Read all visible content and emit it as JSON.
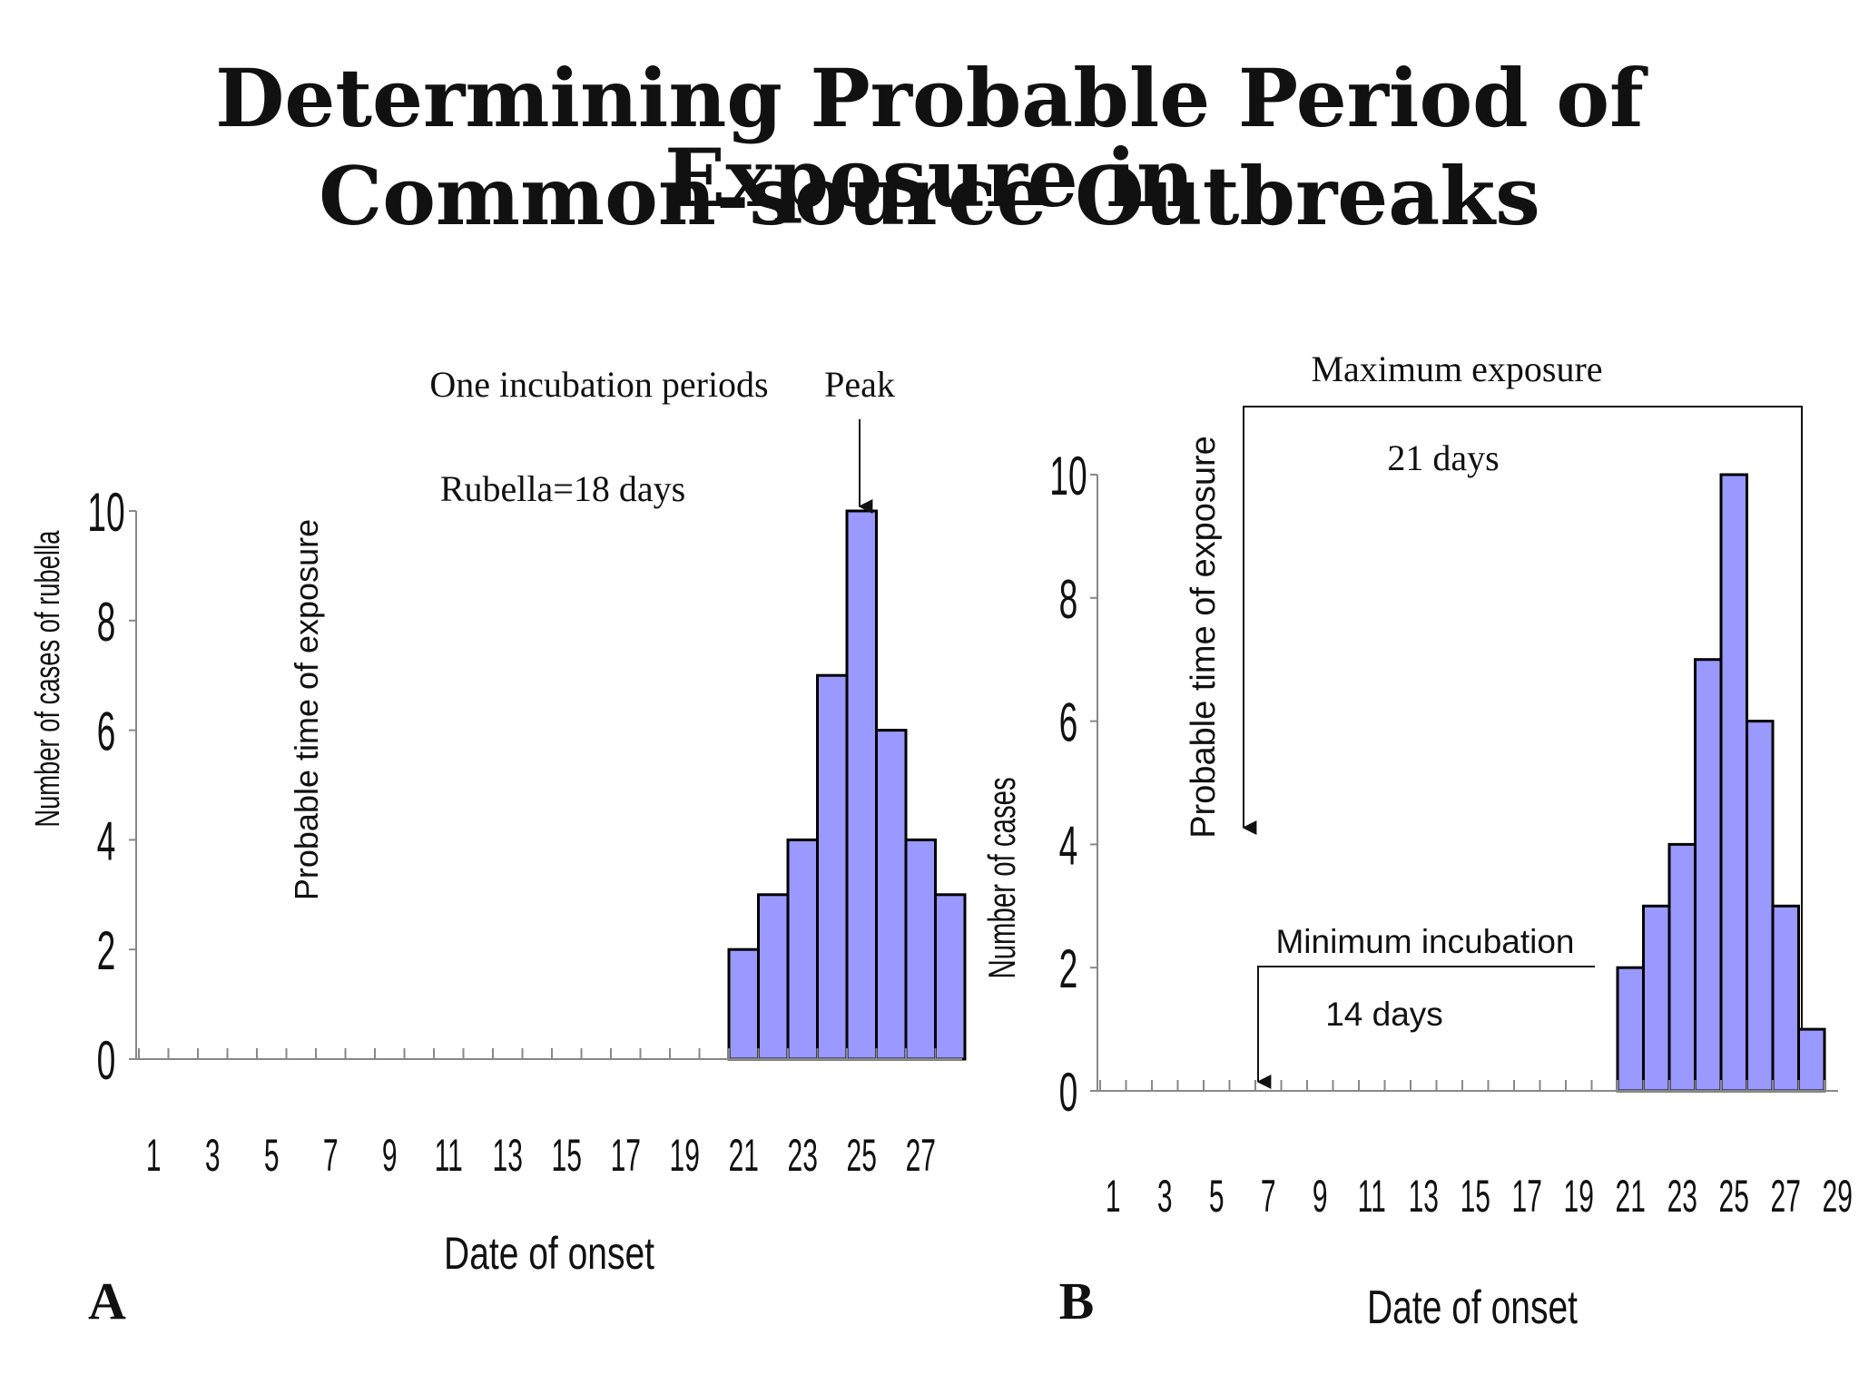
{
  "title": {
    "line1": "Determining Probable Period of Exposure in",
    "line2": "Common-source Outbreaks"
  },
  "colors": {
    "bar_fill": "#9999FF",
    "bar_stroke": "#000000"
  },
  "chart_data": [
    {
      "panel_label": "A",
      "type": "bar",
      "xlabel": "Date of onset",
      "ylabel": "Number of cases of rubella",
      "ylim": [
        0,
        10
      ],
      "yticks": [
        0,
        2,
        4,
        6,
        8,
        10
      ],
      "xticks": [
        1,
        3,
        5,
        7,
        9,
        11,
        13,
        15,
        17,
        19,
        21,
        23,
        25,
        27
      ],
      "xlim": [
        1,
        28
      ],
      "x": [
        21,
        22,
        23,
        24,
        25,
        26,
        27,
        28
      ],
      "values": [
        2,
        3,
        4,
        7,
        10,
        6,
        4,
        3
      ],
      "annotations": {
        "incubation": "One incubation periods",
        "peak": "Peak",
        "rubella": "Rubella=18 days",
        "exposure": "Probable time of exposure"
      }
    },
    {
      "panel_label": "B",
      "type": "bar",
      "xlabel": "Date of onset",
      "ylabel": "Number of cases",
      "ylim": [
        0,
        10
      ],
      "yticks": [
        0,
        2,
        4,
        6,
        8,
        10
      ],
      "xticks": [
        1,
        3,
        5,
        7,
        9,
        11,
        13,
        15,
        17,
        19,
        21,
        23,
        25,
        27,
        29
      ],
      "xlim": [
        1,
        29
      ],
      "x": [
        21,
        22,
        23,
        24,
        25,
        26,
        27,
        28
      ],
      "values": [
        2,
        3,
        4,
        7,
        10,
        6,
        3,
        1
      ],
      "annotations": {
        "max_exposure": "Maximum exposure",
        "days21": "21 days",
        "min_incubation": "Minimum incubation",
        "days14": "14 days",
        "exposure": "Probable time of exposure"
      }
    }
  ]
}
